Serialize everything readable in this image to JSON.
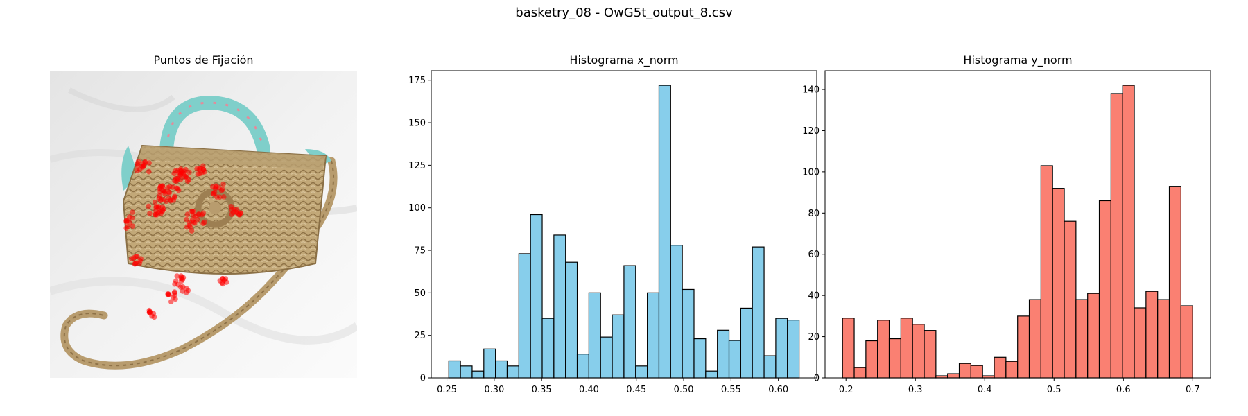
{
  "figure": {
    "suptitle": "basketry_08 - OwG5t_output_8.csv"
  },
  "image_panel": {
    "title": "Puntos de Fijación",
    "subject": "wicker handbag with teal floral scarf on white fabric",
    "marker_color": "#ff0000"
  },
  "chart_data": [
    {
      "type": "bar",
      "title": "Histograma x_norm",
      "xlabel": "",
      "ylabel": "",
      "bar_color": "#87ceeb",
      "edge_color": "#000000",
      "bin_start": 0.252,
      "bin_width": 0.01233,
      "values": [
        10,
        7,
        4,
        17,
        10,
        7,
        73,
        96,
        35,
        84,
        68,
        14,
        50,
        24,
        37,
        66,
        7,
        50,
        172,
        78,
        52,
        23,
        4,
        28,
        22,
        41,
        77,
        13,
        35,
        34
      ],
      "xlim": [
        0.2335,
        0.6405
      ],
      "ylim": [
        0,
        180.6
      ],
      "xticks": [
        0.25,
        0.3,
        0.35,
        0.4,
        0.45,
        0.5,
        0.55,
        0.6
      ],
      "xtick_labels": [
        "0.25",
        "0.30",
        "0.35",
        "0.40",
        "0.45",
        "0.50",
        "0.55",
        "0.60"
      ],
      "yticks": [
        0,
        25,
        50,
        75,
        100,
        125,
        150,
        175
      ],
      "ytick_labels": [
        "0",
        "25",
        "50",
        "75",
        "100",
        "125",
        "150",
        "175"
      ],
      "grid": false
    },
    {
      "type": "bar",
      "title": "Histograma y_norm",
      "xlabel": "",
      "ylabel": "",
      "bar_color": "#fa8072",
      "edge_color": "#000000",
      "bin_start": 0.195,
      "bin_width": 0.01683,
      "values": [
        29,
        5,
        18,
        28,
        19,
        29,
        26,
        23,
        1,
        2,
        7,
        6,
        1,
        10,
        8,
        30,
        38,
        103,
        92,
        76,
        38,
        41,
        86,
        138,
        142,
        34,
        42,
        38,
        93,
        35
      ],
      "xlim": [
        0.1698,
        0.7257
      ],
      "ylim": [
        0,
        149.1
      ],
      "xticks": [
        0.2,
        0.3,
        0.4,
        0.5,
        0.6,
        0.7
      ],
      "xtick_labels": [
        "0.2",
        "0.3",
        "0.4",
        "0.5",
        "0.6",
        "0.7"
      ],
      "yticks": [
        0,
        20,
        40,
        60,
        80,
        100,
        120,
        140
      ],
      "ytick_labels": [
        "0",
        "20",
        "40",
        "60",
        "80",
        "100",
        "120",
        "140"
      ],
      "grid": false
    }
  ]
}
